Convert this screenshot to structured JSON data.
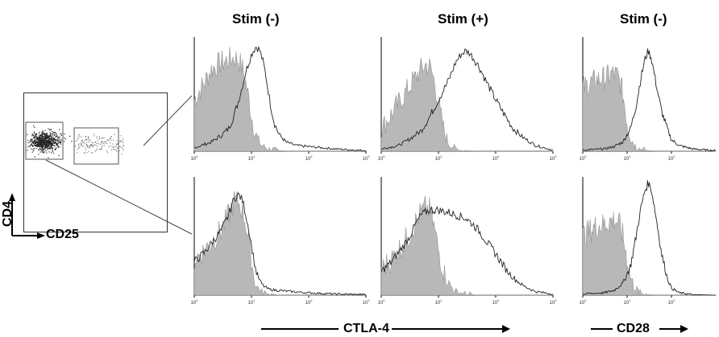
{
  "figure": {
    "column_titles": [
      "Stim (-)",
      "Stim (+)",
      "Stim (-)"
    ],
    "dot_plot": {
      "y_label": "CD4",
      "x_label": "CD25"
    },
    "bottom_labels": {
      "left": "CTLA-4",
      "right": "CD28"
    }
  },
  "chart_data": [
    {
      "type": "area",
      "title": "Stim (-)",
      "row": "top",
      "x_tick_labels": [
        "10^0",
        "10^1",
        "10^2",
        "10^3"
      ],
      "xscale": "log",
      "xlim": [
        1,
        1000
      ],
      "series": [
        {
          "style": "filled-gray",
          "x": [
            1,
            1.5,
            2,
            3,
            4,
            5,
            6,
            7,
            8,
            9,
            10,
            11,
            13,
            15,
            20,
            30,
            50
          ],
          "y": [
            0.45,
            0.6,
            0.72,
            0.78,
            0.8,
            0.82,
            0.8,
            0.72,
            0.6,
            0.45,
            0.32,
            0.2,
            0.1,
            0.05,
            0.02,
            0.005,
            0
          ]
        },
        {
          "style": "outline",
          "x": [
            1,
            2,
            3,
            4,
            5,
            6,
            7,
            8,
            10,
            12,
            14,
            16,
            18,
            20,
            22,
            25,
            30,
            40,
            60,
            100,
            300,
            1000
          ],
          "y": [
            0.03,
            0.08,
            0.14,
            0.2,
            0.32,
            0.45,
            0.58,
            0.7,
            0.85,
            0.92,
            0.88,
            0.78,
            0.65,
            0.5,
            0.38,
            0.25,
            0.15,
            0.08,
            0.05,
            0.04,
            0.02,
            0.005
          ]
        }
      ]
    },
    {
      "type": "area",
      "title": "Stim (+)",
      "row": "top",
      "x_tick_labels": [
        "10^0",
        "10^1",
        "10^2",
        "10^3"
      ],
      "xscale": "log",
      "xlim": [
        1,
        1000
      ],
      "series": [
        {
          "style": "filled-gray",
          "x": [
            1,
            1.5,
            2,
            3,
            4,
            5,
            6,
            7,
            8,
            9,
            10,
            11,
            13,
            15,
            20,
            30,
            50
          ],
          "y": [
            0.2,
            0.32,
            0.42,
            0.55,
            0.65,
            0.72,
            0.76,
            0.74,
            0.66,
            0.55,
            0.42,
            0.3,
            0.15,
            0.07,
            0.02,
            0.005,
            0
          ]
        },
        {
          "style": "outline",
          "x": [
            1,
            2,
            3,
            5,
            7,
            10,
            15,
            20,
            25,
            30,
            35,
            40,
            50,
            70,
            100,
            150,
            200,
            300,
            500,
            1000
          ],
          "y": [
            0.02,
            0.05,
            0.1,
            0.18,
            0.3,
            0.45,
            0.62,
            0.78,
            0.85,
            0.88,
            0.86,
            0.82,
            0.75,
            0.6,
            0.45,
            0.3,
            0.2,
            0.12,
            0.05,
            0.01
          ]
        }
      ]
    },
    {
      "type": "area",
      "title": "Stim (-)",
      "row": "top",
      "x_tick_labels": [
        "10^0",
        "10^1",
        "10^2"
      ],
      "xscale": "log",
      "xlim": [
        1,
        1000
      ],
      "series": [
        {
          "style": "filled-gray",
          "x": [
            1,
            1.5,
            2,
            3,
            4,
            5,
            6,
            7,
            8,
            9,
            10,
            12,
            15,
            20,
            30,
            50
          ],
          "y": [
            0.55,
            0.6,
            0.62,
            0.64,
            0.66,
            0.68,
            0.66,
            0.6,
            0.5,
            0.38,
            0.25,
            0.12,
            0.05,
            0.02,
            0.005,
            0
          ]
        },
        {
          "style": "outline",
          "x": [
            1,
            3,
            5,
            8,
            12,
            16,
            20,
            25,
            30,
            35,
            40,
            50,
            60,
            80,
            100,
            150,
            300,
            1000
          ],
          "y": [
            0.01,
            0.02,
            0.04,
            0.08,
            0.2,
            0.4,
            0.62,
            0.8,
            0.88,
            0.82,
            0.7,
            0.5,
            0.35,
            0.2,
            0.1,
            0.05,
            0.02,
            0.005
          ]
        }
      ]
    },
    {
      "type": "area",
      "title": "Stim (-)",
      "row": "bottom",
      "x_tick_labels": [
        "10^0",
        "10^1",
        "10^2",
        "10^3"
      ],
      "xscale": "log",
      "xlim": [
        1,
        1000
      ],
      "series": [
        {
          "style": "filled-gray",
          "x": [
            1,
            1.5,
            2,
            3,
            4,
            5,
            6,
            7,
            8,
            9,
            10,
            11,
            12,
            15,
            20,
            30
          ],
          "y": [
            0.3,
            0.38,
            0.45,
            0.55,
            0.68,
            0.8,
            0.78,
            0.72,
            0.6,
            0.45,
            0.3,
            0.15,
            0.08,
            0.03,
            0.01,
            0
          ]
        },
        {
          "style": "outline",
          "x": [
            1,
            1.5,
            2,
            3,
            4,
            5,
            6,
            7,
            8,
            9,
            10,
            11,
            12,
            14,
            16,
            20,
            30,
            50,
            100,
            300,
            1000
          ],
          "y": [
            0.28,
            0.36,
            0.44,
            0.55,
            0.68,
            0.82,
            0.85,
            0.8,
            0.68,
            0.55,
            0.42,
            0.3,
            0.2,
            0.12,
            0.08,
            0.05,
            0.04,
            0.03,
            0.02,
            0.01,
            0.005
          ]
        }
      ]
    },
    {
      "type": "area",
      "title": "Stim (+)",
      "row": "bottom",
      "x_tick_labels": [
        "10^0",
        "10^1",
        "10^2",
        "10^3"
      ],
      "xscale": "log",
      "xlim": [
        1,
        1000
      ],
      "series": [
        {
          "style": "filled-gray",
          "x": [
            1,
            1.5,
            2,
            3,
            4,
            5,
            6,
            7,
            8,
            9,
            10,
            12,
            15,
            20,
            30,
            50
          ],
          "y": [
            0.22,
            0.3,
            0.38,
            0.5,
            0.62,
            0.7,
            0.74,
            0.72,
            0.62,
            0.5,
            0.38,
            0.22,
            0.1,
            0.03,
            0.01,
            0
          ]
        },
        {
          "style": "outline",
          "x": [
            1,
            1.5,
            2,
            3,
            4,
            5,
            7,
            10,
            15,
            20,
            30,
            40,
            50,
            70,
            100,
            150,
            200,
            300,
            500,
            1000
          ],
          "y": [
            0.2,
            0.28,
            0.36,
            0.48,
            0.6,
            0.68,
            0.72,
            0.72,
            0.7,
            0.68,
            0.65,
            0.6,
            0.55,
            0.45,
            0.35,
            0.22,
            0.15,
            0.08,
            0.03,
            0.01
          ]
        }
      ]
    },
    {
      "type": "area",
      "title": "Stim (-)",
      "row": "bottom",
      "x_tick_labels": [
        "10^0",
        "10^1",
        "10^2"
      ],
      "xscale": "log",
      "xlim": [
        1,
        1000
      ],
      "series": [
        {
          "style": "filled-gray",
          "x": [
            1,
            1.5,
            2,
            3,
            4,
            5,
            6,
            7,
            8,
            9,
            10,
            12,
            15,
            20,
            30,
            50
          ],
          "y": [
            0.5,
            0.55,
            0.58,
            0.6,
            0.62,
            0.64,
            0.62,
            0.58,
            0.5,
            0.4,
            0.3,
            0.15,
            0.06,
            0.02,
            0.005,
            0
          ]
        },
        {
          "style": "outline",
          "x": [
            1,
            3,
            5,
            8,
            12,
            16,
            20,
            25,
            30,
            35,
            40,
            50,
            60,
            80,
            100,
            150,
            300,
            1000
          ],
          "y": [
            0.01,
            0.02,
            0.04,
            0.1,
            0.25,
            0.5,
            0.72,
            0.88,
            0.95,
            0.9,
            0.78,
            0.55,
            0.35,
            0.15,
            0.06,
            0.02,
            0.005,
            0
          ]
        }
      ]
    }
  ]
}
